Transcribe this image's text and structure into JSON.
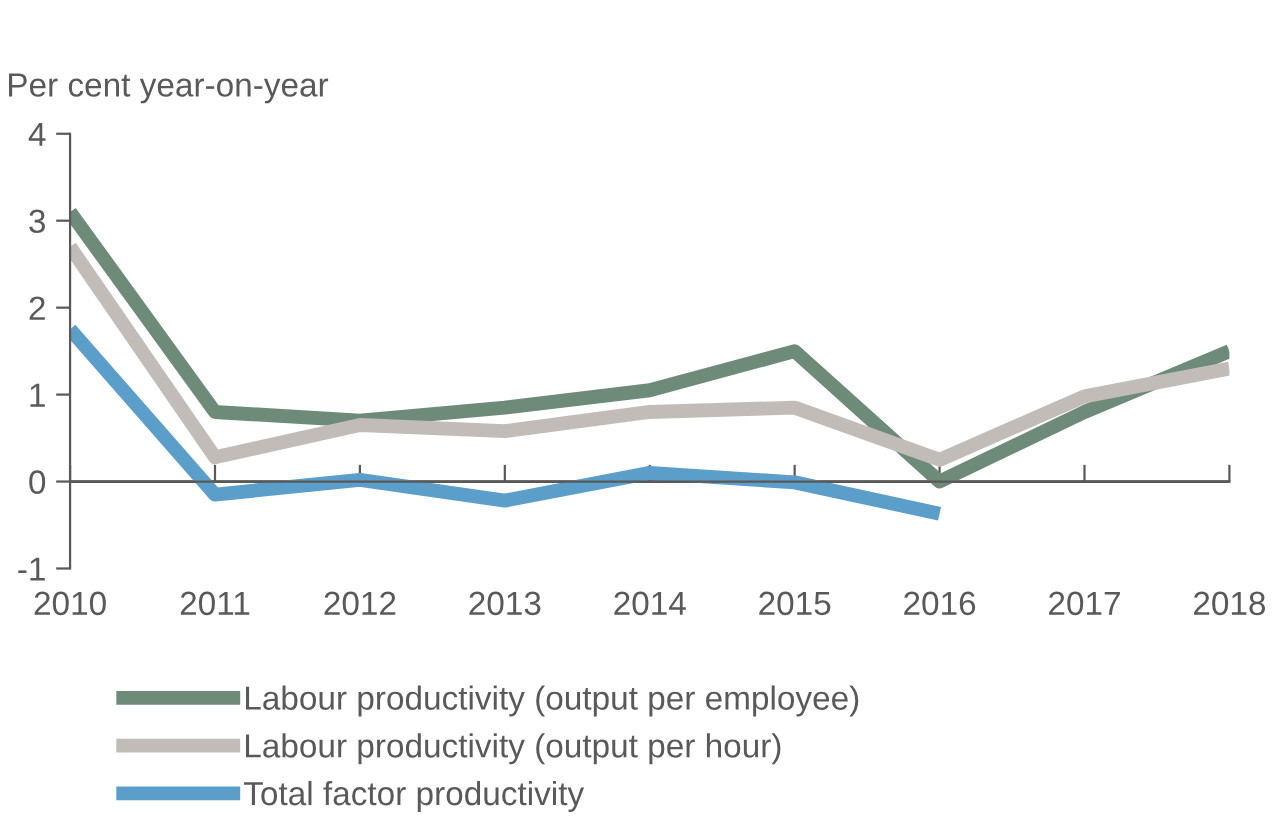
{
  "chart_data": {
    "type": "line",
    "ylabel": "Per cent year-on-year",
    "x": [
      2010,
      2011,
      2012,
      2013,
      2014,
      2015,
      2016,
      2017,
      2018
    ],
    "series": [
      {
        "name": "Labour productivity (output per employee)",
        "color": "#6e8b7a",
        "values": [
          3.1,
          0.8,
          0.7,
          0.85,
          1.05,
          1.5,
          0.0,
          0.8,
          1.5
        ]
      },
      {
        "name": "Labour productivity (output per hour)",
        "color": "#c2bcb8",
        "values": [
          2.7,
          0.28,
          0.65,
          0.58,
          0.8,
          0.85,
          0.25,
          0.98,
          1.3
        ]
      },
      {
        "name": "Total factor productivity",
        "color": "#5b9ec9",
        "values": [
          1.75,
          -0.15,
          0.02,
          -0.22,
          0.1,
          -0.01,
          -0.37,
          null,
          null
        ]
      }
    ],
    "xlim": [
      2010,
      2018
    ],
    "xticks": [
      2010,
      2011,
      2012,
      2013,
      2014,
      2015,
      2016,
      2017,
      2018
    ],
    "ylim": [
      -1,
      4
    ],
    "yticks": [
      -1,
      0,
      1,
      2,
      3,
      4
    ],
    "ref_lines": [
      {
        "axis": "y",
        "value": 0,
        "color": "#595959"
      }
    ],
    "grid": false,
    "legend": "bottom",
    "marker": "none",
    "line_style": "solid"
  }
}
